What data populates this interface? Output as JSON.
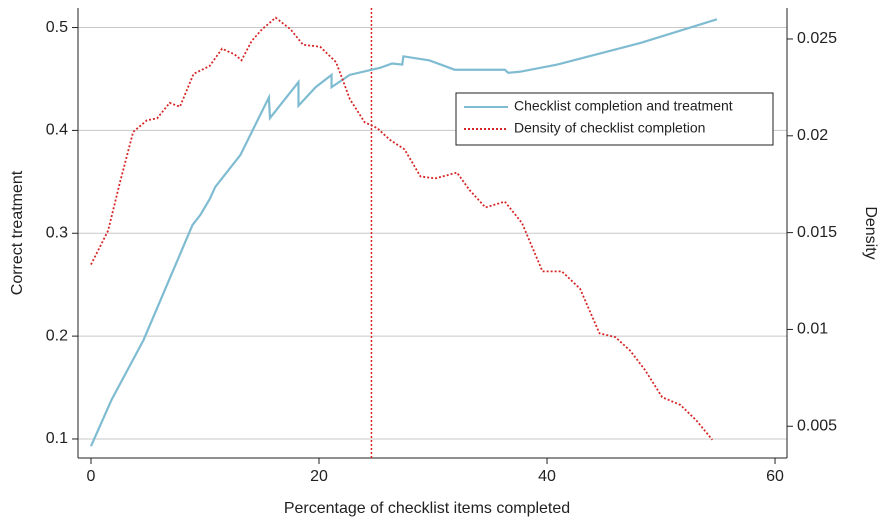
{
  "chart_data": {
    "type": "line",
    "xlabel": "Percentage of checklist items completed",
    "ylabel": "Correct treatment",
    "y2label": "Density",
    "xlim": [
      -1.14,
      61.05
    ],
    "xticks": [
      0,
      20,
      40,
      60
    ],
    "ylim": [
      0.0815,
      0.519
    ],
    "yticks": [
      0.1,
      0.2,
      0.3,
      0.4,
      0.5
    ],
    "y2lim": [
      0.00336,
      0.0266
    ],
    "y2ticks": [
      0.005,
      0.01,
      0.015,
      0.02,
      0.025
    ],
    "grid": true,
    "legend": "upper right",
    "vlines": [
      24.6
    ],
    "vline_color": "#d62728",
    "series": [
      {
        "name": "Checklist completion and treatment",
        "color": "#7fbcd2",
        "axis": "y",
        "x": [
          0,
          1.8,
          4.6,
          8.9,
          9.6,
          10.4,
          10.9,
          13.1,
          15.6,
          15.7,
          18.2,
          18.2,
          19.7,
          21.1,
          21.1,
          22.7,
          25.4,
          26.4,
          27.3,
          27.4,
          29.7,
          31.9,
          36.3,
          36.6,
          37.6,
          40.9,
          48.2,
          54.9
        ],
        "values": [
          0.093,
          0.138,
          0.196,
          0.308,
          0.318,
          0.333,
          0.345,
          0.376,
          0.432,
          0.412,
          0.447,
          0.424,
          0.442,
          0.454,
          0.442,
          0.454,
          0.461,
          0.465,
          0.464,
          0.472,
          0.468,
          0.459,
          0.459,
          0.456,
          0.457,
          0.464,
          0.485,
          0.508
        ]
      },
      {
        "name": "Density of checklist completion",
        "color": "#d62728",
        "axis": "y2",
        "dash": true,
        "x": [
          0,
          1.5,
          2.5,
          3.7,
          4.9,
          5.8,
          6.9,
          7.8,
          9.0,
          10.4,
          11.5,
          12.6,
          13.2,
          14.1,
          15.0,
          16.2,
          17.5,
          18.6,
          20.1,
          21.5,
          22.7,
          24.0,
          25.1,
          26.2,
          27.5,
          28.9,
          30.2,
          32.1,
          33.2,
          34.6,
          36.3,
          37.8,
          39.6,
          41.3,
          42.9,
          44.6,
          46.0,
          47.3,
          48.6,
          50.1,
          51.7,
          53.1,
          54.5
        ],
        "values": [
          0.01335,
          0.0151,
          0.0175,
          0.0202,
          0.0208,
          0.0209,
          0.0217,
          0.0215,
          0.0232,
          0.0236,
          0.0245,
          0.0242,
          0.0239,
          0.0249,
          0.0255,
          0.0261,
          0.0255,
          0.0247,
          0.0246,
          0.0238,
          0.0219,
          0.0207,
          0.0204,
          0.0198,
          0.0193,
          0.0179,
          0.0178,
          0.0181,
          0.0172,
          0.0163,
          0.0166,
          0.0155,
          0.013,
          0.013,
          0.0121,
          0.0098,
          0.0096,
          0.0089,
          0.0079,
          0.0065,
          0.0061,
          0.0053,
          0.0043
        ]
      }
    ]
  }
}
